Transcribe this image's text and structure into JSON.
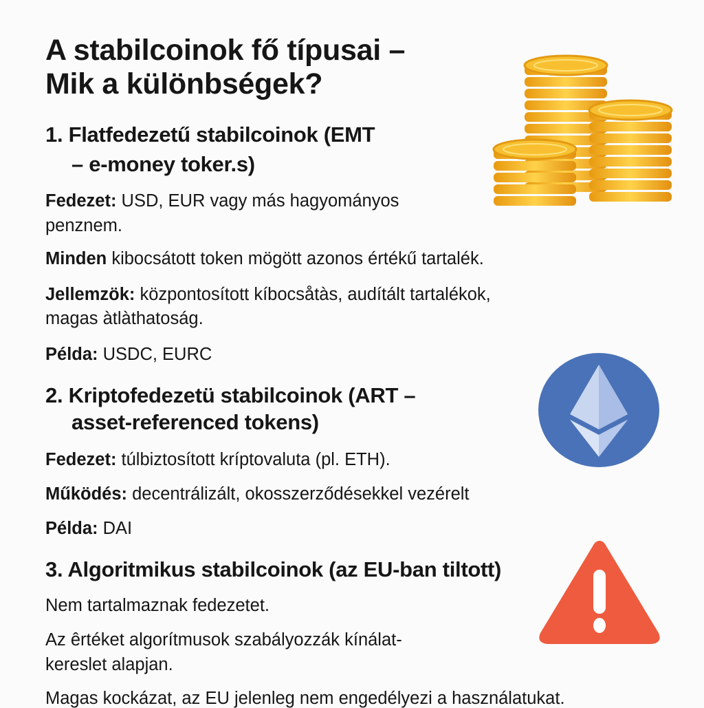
{
  "title": {
    "line1": "A stabilcoinok fő típusai –",
    "line2": "Mik a különbségek?"
  },
  "sections": [
    {
      "heading_line1": "1. Flatfedezetű stabilcoinok (EMT",
      "heading_line2": "– e-money toker.s)",
      "items": [
        {
          "label": "Fedezet:",
          "text": " USD, EUR vagy más hagyományos",
          "cont": "penznem."
        },
        {
          "label": "Minden",
          "text": " kibocsátott token mögött azonos értékű tartalék."
        },
        {
          "label": "Jellemzök:",
          "text": " központosított kíbocsåtàs, audítált tartalékok,",
          "cont": "magas àtlàthatoság."
        },
        {
          "label": "Példa:",
          "text": " USDC, EURC"
        }
      ],
      "icon": "gold-coin-stacks-icon"
    },
    {
      "heading_line1": "2. Kriptofedezetü stabilcoinok (ART –",
      "heading_line2": "asset-referenced tokens)",
      "items": [
        {
          "label": "Fedezet:",
          "text": " túlbiztosított kríptovaluta (pl. ETH)."
        },
        {
          "label": "Működés:",
          "text": " decentrálizált, okosszerződésekkel vezérelt"
        },
        {
          "label": "Példa:",
          "text": " DAI"
        }
      ],
      "icon": "ethereum-icon"
    },
    {
      "heading_line1": "3. Algoritmikus stabilcoinok (az EU-ban tiltott)",
      "items": [
        {
          "text": "Nem tartalmaznak fedezetet."
        },
        {
          "text": "Az êrtéket algorítmusok szabályozzák kínálat-",
          "cont": "kereslet alapjan."
        },
        {
          "text": "Magas kockázat, az EU jelenleg nem engedélyezi a használatukat."
        }
      ],
      "icon": "warning-icon"
    }
  ],
  "colors": {
    "coin": "#f2b21c",
    "ethereum": "#4a72b8",
    "warning": "#ee5b3f"
  }
}
